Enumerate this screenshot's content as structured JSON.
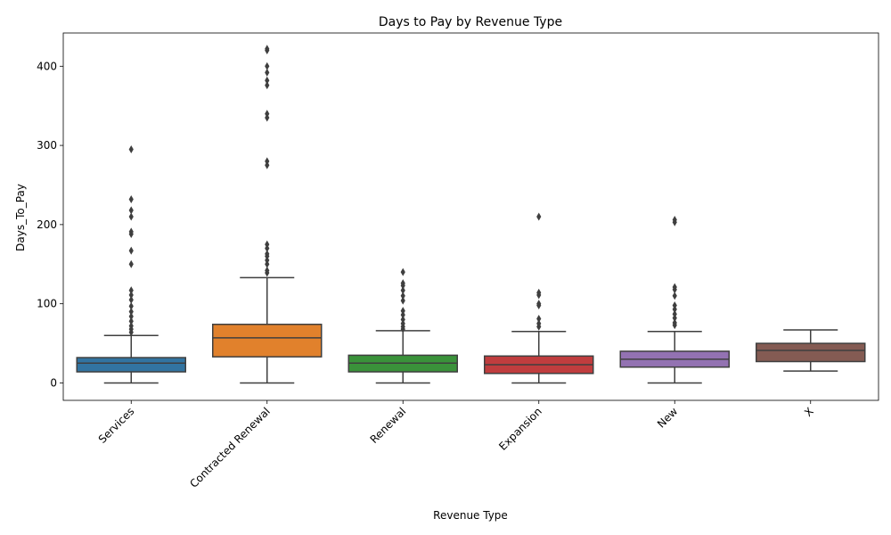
{
  "chart_data": {
    "type": "box",
    "title": "Days to Pay by Revenue Type",
    "xlabel": "Revenue Type",
    "ylabel": "Days_To_Pay",
    "ylim": [
      -22,
      442
    ],
    "yticks": [
      0,
      100,
      200,
      300,
      400
    ],
    "grid": false,
    "legend": "none",
    "categories": [
      "Services",
      "Contracted Renewal",
      "Renewal",
      "Expansion",
      "New",
      "X"
    ],
    "boxes": [
      {
        "category": "Services",
        "color": "#3274a1",
        "min": 0,
        "q1": 14,
        "median": 25,
        "q3": 32,
        "max": 60,
        "outliers": [
          64,
          68,
          72,
          78,
          84,
          90,
          97,
          105,
          111,
          117,
          150,
          167,
          188,
          191,
          210,
          218,
          232,
          295
        ]
      },
      {
        "category": "Contracted Renewal",
        "color": "#e1812c",
        "min": 0,
        "q1": 33,
        "median": 57,
        "q3": 74,
        "max": 133,
        "outliers": [
          139,
          142,
          150,
          155,
          160,
          163,
          170,
          175,
          275,
          280,
          335,
          340,
          376,
          382,
          392,
          400,
          420,
          422
        ]
      },
      {
        "category": "Renewal",
        "color": "#3a923a",
        "min": 0,
        "q1": 14,
        "median": 25,
        "q3": 35,
        "max": 66,
        "outliers": [
          68,
          71,
          75,
          80,
          86,
          91,
          104,
          110,
          117,
          123,
          126,
          140
        ]
      },
      {
        "category": "Expansion",
        "color": "#c03d3e",
        "min": 0,
        "q1": 12,
        "median": 23,
        "q3": 34,
        "max": 65,
        "outliers": [
          71,
          75,
          81,
          98,
          100,
          111,
          114,
          210
        ]
      },
      {
        "category": "New",
        "color": "#9372b2",
        "min": 0,
        "q1": 20,
        "median": 30,
        "q3": 40,
        "max": 65,
        "outliers": [
          73,
          76,
          82,
          87,
          93,
          98,
          110,
          118,
          121,
          203,
          206
        ]
      },
      {
        "category": "X",
        "color": "#845b53",
        "min": 15,
        "q1": 27,
        "median": 41,
        "q3": 50,
        "max": 67,
        "outliers": []
      }
    ]
  }
}
